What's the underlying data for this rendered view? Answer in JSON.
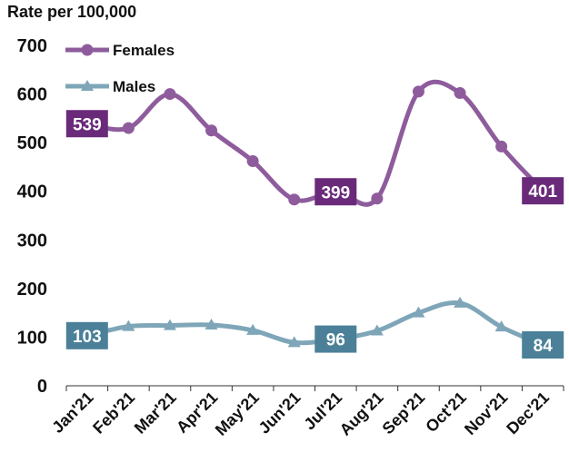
{
  "chart_data": {
    "type": "line",
    "title": "Rate per 100,000",
    "categories": [
      "Jan'21",
      "Feb'21",
      "Mar'21",
      "Apr'21",
      "May'21",
      "Jun'21",
      "Jul'21",
      "Aug'21",
      "Sep'21",
      "Oct'21",
      "Nov'21",
      "Dec'21"
    ],
    "series": [
      {
        "name": "Females",
        "color": "#8e5c9c",
        "label_color": "#6a2a7a",
        "marker": "circle",
        "values": [
          539,
          530,
          600,
          525,
          462,
          383,
          399,
          385,
          605,
          602,
          492,
          401
        ]
      },
      {
        "name": "Males",
        "color": "#7ea6b8",
        "label_color": "#4b8098",
        "marker": "triangle",
        "values": [
          103,
          122,
          124,
          125,
          114,
          89,
          96,
          113,
          150,
          170,
          121,
          84
        ]
      }
    ],
    "label_points": [
      0,
      6,
      11
    ],
    "ylim": [
      0,
      700
    ],
    "yticks": [
      0,
      100,
      200,
      300,
      400,
      500,
      600,
      700
    ],
    "legend": "top-left",
    "grid": false
  }
}
